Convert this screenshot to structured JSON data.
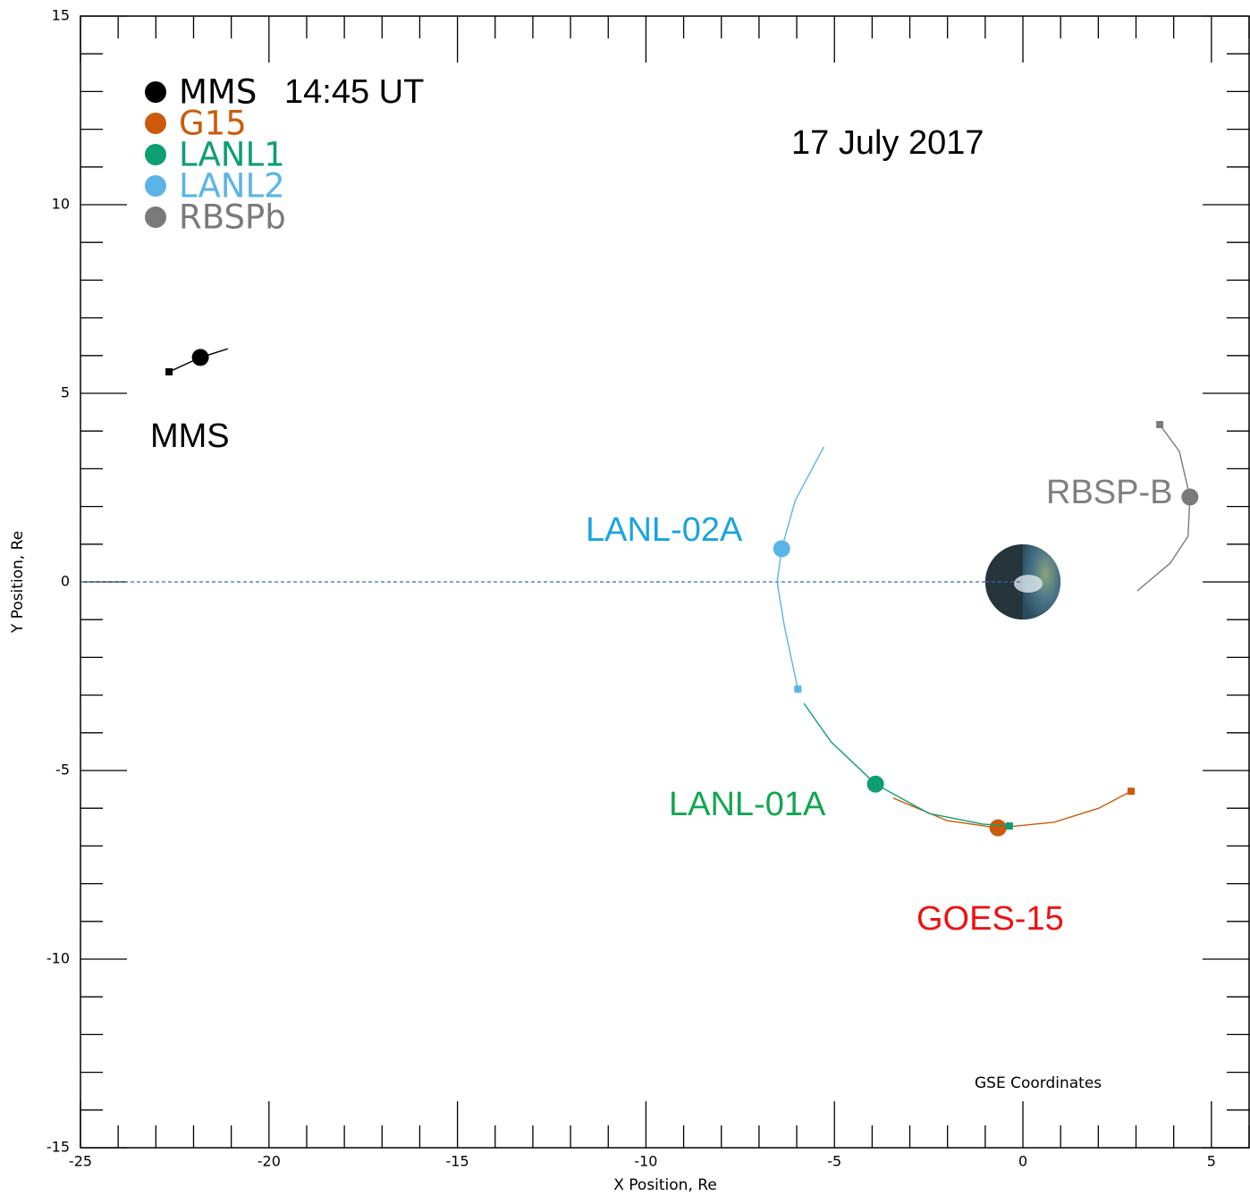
{
  "chart_data": {
    "type": "orbit",
    "xlabel": "X Position, Re",
    "ylabel": "Y Position, Re",
    "xlim": [
      -25,
      6
    ],
    "ylim": [
      -15,
      15
    ],
    "xticks": [
      -25,
      -20,
      -15,
      -10,
      -5,
      0,
      5
    ],
    "yticks": [
      -15,
      -10,
      -5,
      0,
      5,
      10,
      15
    ],
    "xminor_ticks": [
      -24,
      -23,
      -22,
      -21,
      -19,
      -18,
      -17,
      -16,
      -14,
      -13,
      -12,
      -11,
      -9,
      -8,
      -7,
      -6,
      -4,
      -3,
      -2,
      -1,
      1,
      2,
      3,
      4,
      6
    ],
    "yminor_ticks": [
      -14,
      -13,
      -12,
      -11,
      -9,
      -8,
      -7,
      -6,
      -4,
      -3,
      -2,
      -1,
      1,
      2,
      3,
      4,
      6,
      7,
      8,
      9,
      11,
      12,
      13,
      14
    ],
    "earth": {
      "x": 0,
      "y": 0,
      "r": 1
    },
    "series": [
      {
        "name": "MMS",
        "color": "#000000",
        "x": [
          -22.65,
          -21.82,
          -21.09
        ],
        "y": [
          5.57,
          5.95,
          6.18
        ],
        "position": {
          "x": -21.82,
          "y": 5.95
        }
      },
      {
        "name": "G15",
        "color": "#cc5a0a",
        "x": [
          2.87,
          2.01,
          0.83,
          -0.66,
          -2.01,
          -3.44
        ],
        "y": [
          -5.55,
          -6.0,
          -6.37,
          -6.52,
          -6.33,
          -5.73
        ],
        "position": {
          "x": -0.66,
          "y": -6.52
        }
      },
      {
        "name": "LANL1",
        "color": "#0e9e73",
        "x": [
          -0.36,
          -1.07,
          -2.49,
          -3.91,
          -5.09,
          -5.81
        ],
        "y": [
          -6.47,
          -6.42,
          -6.14,
          -5.36,
          -4.24,
          -3.22
        ],
        "position": {
          "x": -3.91,
          "y": -5.36
        }
      },
      {
        "name": "LANL2",
        "color": "#5ab4e8",
        "x": [
          -5.97,
          -6.33,
          -6.52,
          -6.4,
          -6.04,
          -5.28
        ],
        "y": [
          -2.84,
          -1.16,
          0,
          0.88,
          2.16,
          3.58
        ],
        "position": {
          "x": -6.4,
          "y": 0.88
        }
      },
      {
        "name": "RBSPb",
        "color": "#7a7a7a",
        "x": [
          3.63,
          4.15,
          4.43,
          4.38,
          3.91,
          3.03
        ],
        "y": [
          4.17,
          3.46,
          2.25,
          1.21,
          0.5,
          -0.24
        ],
        "position": {
          "x": 4.43,
          "y": 2.25
        }
      }
    ],
    "annotations": [
      {
        "text": "14:45 UT",
        "color": "#000000"
      },
      {
        "text": "17 July 2017",
        "color": "#000000"
      },
      {
        "text": "MMS",
        "color": "#000000"
      },
      {
        "text": "LANL-02A",
        "color": "#1aa3e0"
      },
      {
        "text": "LANL-01A",
        "color": "#12a650"
      },
      {
        "text": "GOES-15",
        "color": "#ee1111"
      },
      {
        "text": "RBSP-B",
        "color": "#7f7f7f"
      },
      {
        "text": "GSE Coordinates",
        "color": "#000000"
      }
    ]
  }
}
